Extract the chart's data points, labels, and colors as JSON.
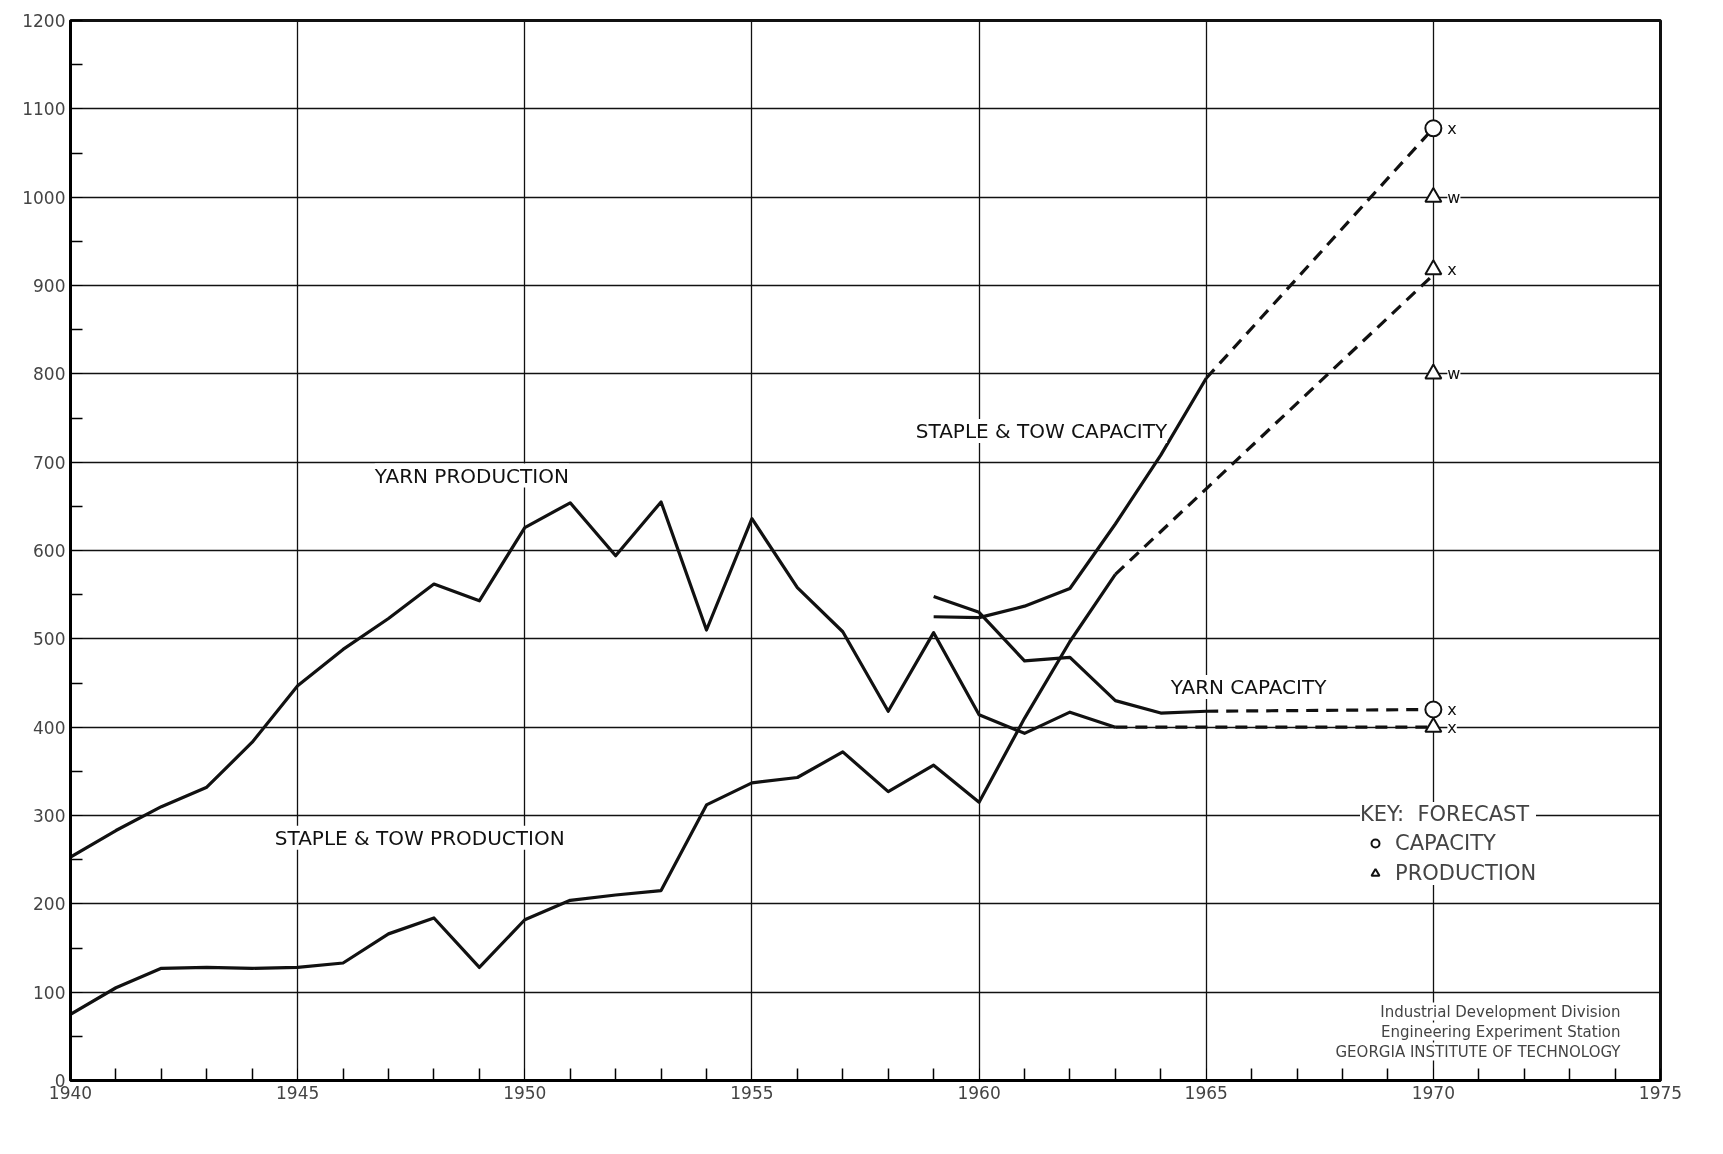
{
  "chart_data": {
    "type": "line",
    "xlim": [
      1940,
      1975
    ],
    "xticks": [
      1940,
      1945,
      1950,
      1955,
      1960,
      1965,
      1970,
      1975
    ],
    "ylim": [
      0,
      1200
    ],
    "yticks": [
      0,
      100,
      200,
      300,
      400,
      500,
      600,
      700,
      800,
      900,
      1000,
      1100,
      1200
    ],
    "grid": true,
    "legend": "bottom right",
    "legend_title": "KEY:  FORECAST",
    "line_style": "solid",
    "marker": "none",
    "series": [
      {
        "name": "YARN PRODUCTION",
        "color": "#111111",
        "x": [
          1940,
          1941,
          1942,
          1943,
          1944,
          1945,
          1946,
          1947,
          1948,
          1949,
          1950,
          1951,
          1952,
          1953,
          1954,
          1955,
          1956,
          1957,
          1958,
          1959,
          1960,
          1961,
          1962,
          1963
        ],
        "values": [
          253,
          283,
          310,
          332,
          383,
          447,
          488,
          523,
          562,
          543,
          626,
          654,
          594,
          655,
          510,
          636,
          558,
          508,
          418,
          507,
          414,
          393,
          417,
          400
        ]
      },
      {
        "color": "#111111",
        "x": [
          1963,
          1970
        ],
        "values": [
          400,
          400
        ],
        "line_style": "dashed"
      },
      {
        "name": "YARN CAPACITY",
        "color": "#111111",
        "x": [
          1959,
          1960,
          1961,
          1962,
          1963,
          1964,
          1965
        ],
        "values": [
          548,
          530,
          475,
          479,
          430,
          416,
          418
        ]
      },
      {
        "color": "#111111",
        "x": [
          1965,
          1970
        ],
        "values": [
          418,
          420
        ],
        "line_style": "dashed"
      },
      {
        "name": "STAPLE & TOW CAPACITY",
        "color": "#111111",
        "x": [
          1959,
          1960,
          1961,
          1962,
          1963,
          1964,
          1965
        ],
        "values": [
          525,
          524,
          537,
          557,
          630,
          708,
          795
        ]
      },
      {
        "color": "#111111",
        "x": [
          1965,
          1970
        ],
        "values": [
          795,
          1078
        ],
        "line_style": "dashed"
      },
      {
        "name": "STAPLE & TOW PRODUCTION",
        "color": "#111111",
        "x": [
          1940,
          1941,
          1942,
          1943,
          1944,
          1945,
          1946,
          1947,
          1948,
          1949,
          1950,
          1951,
          1952,
          1953,
          1954,
          1955,
          1956,
          1957,
          1958,
          1959,
          1960,
          1961,
          1962,
          1963
        ],
        "values": [
          75,
          105,
          127,
          128,
          127,
          128,
          133,
          166,
          184,
          128,
          182,
          204,
          210,
          215,
          312,
          337,
          343,
          372,
          327,
          357,
          315,
          410,
          497,
          573
        ]
      },
      {
        "color": "#111111",
        "x": [
          1963,
          1970
        ],
        "values": [
          573,
          912
        ],
        "line_style": "dashed"
      },
      {
        "name": "CAPACITY",
        "type": "scatter",
        "marker": "circle",
        "color": "#111111",
        "x": [
          1970,
          1970
        ],
        "values": [
          1078,
          420
        ],
        "value_labels": [
          "x",
          "x"
        ]
      },
      {
        "name": "PRODUCTION",
        "type": "scatter",
        "marker": "triangle",
        "color": "#111111",
        "x": [
          1970,
          1970,
          1970,
          1970
        ],
        "values": [
          1000,
          918,
          800,
          400
        ],
        "value_labels": [
          "w",
          "x",
          "w",
          "x"
        ]
      }
    ],
    "annotations": [
      "Industrial Development Division",
      "Engineering Experiment Station",
      "GEORGIA INSTITUTE OF TECHNOLOGY"
    ]
  }
}
